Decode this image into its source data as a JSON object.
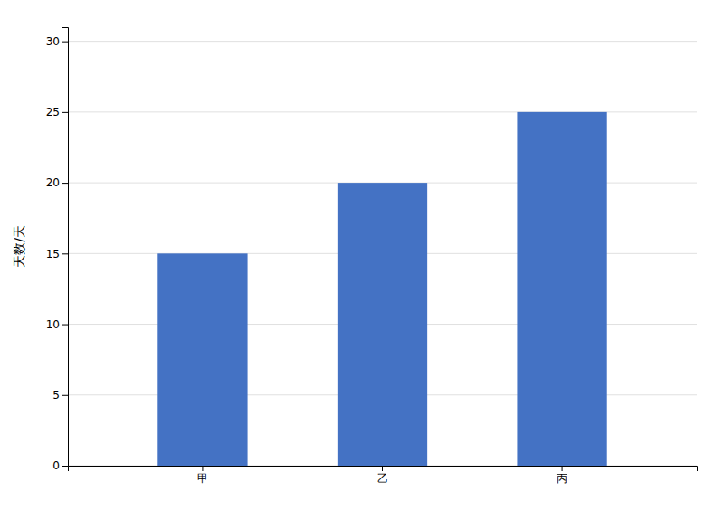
{
  "chart_data": {
    "type": "bar",
    "categories": [
      "甲",
      "乙",
      "丙"
    ],
    "values": [
      15,
      20,
      25
    ],
    "color": "#4472C4",
    "ylabel": "天数/天",
    "ylim": [
      0,
      31
    ],
    "yticks": [
      0,
      5,
      10,
      15,
      20,
      25,
      30
    ],
    "grid": true
  }
}
